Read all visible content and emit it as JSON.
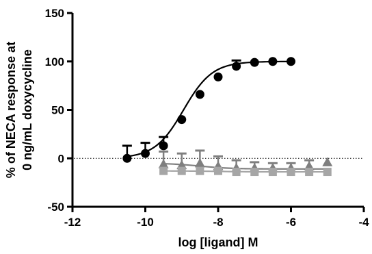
{
  "chart_data": {
    "type": "scatter",
    "title": "",
    "xlabel": "log [ligand] M",
    "ylabel_lines": [
      "% of NECA response at",
      "0 ng/mL doxycycline"
    ],
    "xlim": [
      -12,
      -4
    ],
    "ylim": [
      -50,
      150
    ],
    "x_ticks": [
      -12,
      -10,
      -8,
      -6,
      -4
    ],
    "y_ticks": [
      -50,
      0,
      50,
      100,
      150
    ],
    "x_tick_labels": [
      "-12",
      "-10",
      "-8",
      "-6",
      "-4"
    ],
    "y_tick_labels": [
      "-50",
      "0",
      "50",
      "100",
      "150"
    ],
    "grid": false,
    "legend": "none",
    "reference_line": {
      "y": 0,
      "style": "dotted"
    },
    "series": [
      {
        "marker": "circle",
        "color": "#000000",
        "x": [
          -10.5,
          -10.0,
          -9.5,
          -9.0,
          -8.5,
          -8.0,
          -7.5,
          -7.0,
          -6.5,
          -6.0
        ],
        "y": [
          0,
          5,
          13,
          40,
          66,
          84,
          95,
          99,
          100,
          100
        ],
        "error_plus": [
          13,
          11,
          9,
          0,
          0,
          0,
          6,
          0,
          0,
          0
        ],
        "fit": [
          -10.5,
          0,
          100,
          -8.95,
          1.1
        ]
      },
      {
        "marker": "triangle",
        "color": "#7f7f7f",
        "x": [
          -9.5,
          -9.0,
          -8.5,
          -8.0,
          -7.5,
          -7.0,
          -6.5,
          -6.0,
          -5.5,
          -5.0
        ],
        "y": [
          -6,
          -7,
          -5,
          -8,
          -10,
          -10,
          -10,
          -10,
          -8,
          -4
        ],
        "error_plus": [
          13,
          12,
          13,
          10,
          8,
          6,
          5,
          5,
          6,
          0
        ],
        "fit": [
          -9.5,
          -5,
          -11,
          -8.5,
          1.0
        ]
      },
      {
        "marker": "square",
        "color": "#a6a6a6",
        "x": [
          -9.5,
          -9.0,
          -8.5,
          -8.0,
          -7.5,
          -7.0,
          -6.5,
          -6.0,
          -5.5,
          -5.0
        ],
        "y": [
          -13,
          -13,
          -13,
          -13,
          -14,
          -14,
          -14,
          -14,
          -14,
          -14
        ],
        "error_plus": [
          0,
          0,
          0,
          0,
          0,
          0,
          0,
          0,
          0,
          0
        ],
        "fit": [
          -9.5,
          -13,
          -14,
          -8,
          1.0
        ]
      }
    ]
  }
}
